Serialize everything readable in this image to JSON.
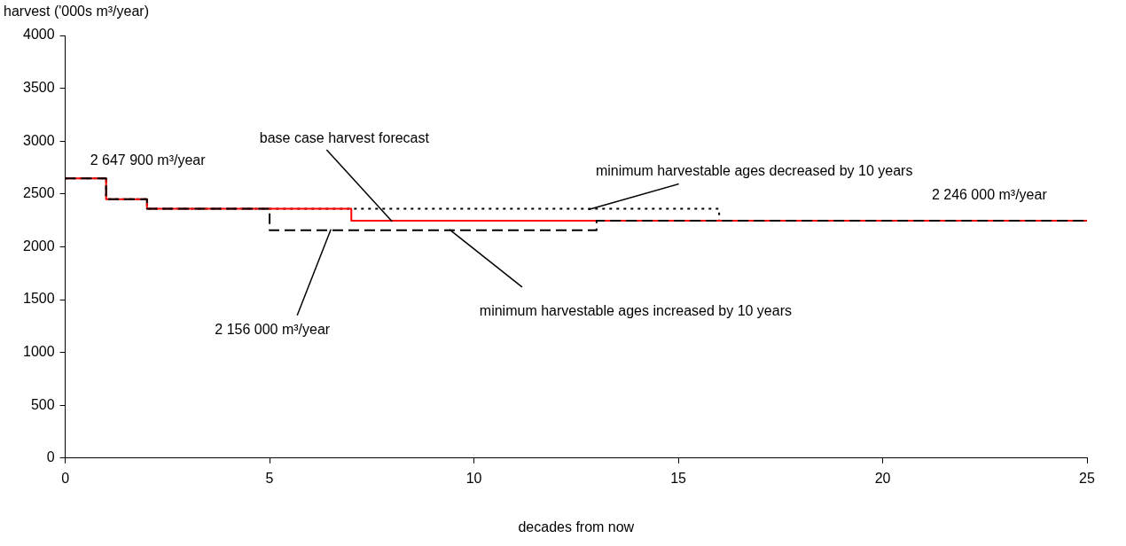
{
  "chart_data": {
    "type": "step",
    "xlabel": "decades from now",
    "ylabel": "harvest ('000s m³/year)",
    "xlim": [
      0,
      25
    ],
    "xticks": [
      0,
      5,
      10,
      15,
      20,
      25
    ],
    "ylim": [
      0,
      4000
    ],
    "yticks": [
      0,
      500,
      1000,
      1500,
      2000,
      2500,
      3000,
      3500,
      4000
    ],
    "grid": false,
    "legend": false,
    "marker": "none",
    "series": [
      {
        "color": "#000000",
        "line_style": "dotted",
        "x": [
          0,
          1,
          2,
          16,
          25
        ],
        "values": [
          2647.9,
          2450,
          2360,
          2246,
          2246
        ]
      },
      {
        "color": "#ff0000",
        "line_style": "solid",
        "x": [
          0,
          1,
          2,
          7,
          25
        ],
        "values": [
          2647.9,
          2450,
          2360,
          2246,
          2246
        ]
      },
      {
        "color": "#000000",
        "line_style": "dashed",
        "x": [
          0,
          1,
          2,
          5,
          13,
          25
        ],
        "values": [
          2647.9,
          2450,
          2360,
          2156,
          2246,
          2246
        ]
      }
    ],
    "annotations": [
      {
        "text": "2 647 900 m³/year",
        "x": 0.5,
        "y": 2647.9
      },
      {
        "text": "base case harvest forecast",
        "x": 8,
        "y": 2246
      },
      {
        "text": "minimum harvestable ages decreased by 10 years",
        "x": 12.8,
        "y": 2360
      },
      {
        "text": "2 246 000 m³/year",
        "x": 23,
        "y": 2246
      },
      {
        "text": "2 156 000 m³/year",
        "x": 6.5,
        "y": 2156
      },
      {
        "text": "minimum harvestable ages increased by 10 years",
        "x": 9.4,
        "y": 2156
      }
    ]
  }
}
